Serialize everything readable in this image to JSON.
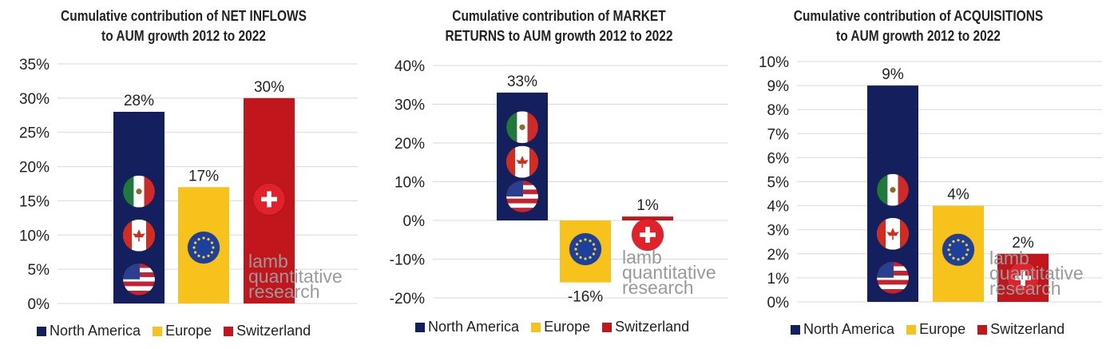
{
  "colors": {
    "north_america": "#14205e",
    "europe": "#f7c21b",
    "switzerland": "#c0161c",
    "grid": "#d9d9d9",
    "text": "#222222"
  },
  "legend": [
    "North America",
    "Europe",
    "Switzerland"
  ],
  "watermark": {
    "line1": "lamb",
    "line2": "quantitative",
    "line3": "research"
  },
  "icons": {
    "north_america": [
      "mexico-flag-icon",
      "canada-flag-icon",
      "usa-flag-icon"
    ],
    "europe": [
      "eu-flag-icon"
    ],
    "switzerland": [
      "swiss-flag-icon"
    ]
  },
  "chart_data": [
    {
      "type": "bar",
      "title": [
        "Cumulative contribution of NET INFLOWS",
        "to AUM growth 2012 to 2022"
      ],
      "categories": [
        "North America",
        "Europe",
        "Switzerland"
      ],
      "values": [
        28,
        17,
        30
      ],
      "data_labels": [
        "28%",
        "17%",
        "30%"
      ],
      "yticks": [
        "0%",
        "5%",
        "10%",
        "15%",
        "20%",
        "25%",
        "30%",
        "35%"
      ],
      "ylim": [
        0,
        35
      ],
      "tick_step": 5,
      "grid": true,
      "legend_position": "bottom"
    },
    {
      "type": "bar",
      "title": [
        "Cumulative contribution of MARKET",
        "RETURNS to AUM growth 2012 to 2022"
      ],
      "categories": [
        "North America",
        "Europe",
        "Switzerland"
      ],
      "values": [
        33,
        -16,
        1
      ],
      "data_labels": [
        "33%",
        "-16%",
        "1%"
      ],
      "yticks": [
        "-20%",
        "-10%",
        "0%",
        "10%",
        "20%",
        "30%",
        "40%"
      ],
      "ylim": [
        -20,
        40
      ],
      "tick_step": 10,
      "grid": true,
      "legend_position": "bottom"
    },
    {
      "type": "bar",
      "title": [
        "Cumulative contribution of ACQUISITIONS",
        "to AUM growth 2012 to 2022"
      ],
      "categories": [
        "North America",
        "Europe",
        "Switzerland"
      ],
      "values": [
        9,
        4,
        2
      ],
      "data_labels": [
        "9%",
        "4%",
        "2%"
      ],
      "yticks": [
        "0%",
        "1%",
        "2%",
        "3%",
        "4%",
        "5%",
        "6%",
        "7%",
        "8%",
        "9%",
        "10%"
      ],
      "ylim": [
        0,
        10
      ],
      "tick_step": 1,
      "grid": true,
      "legend_position": "bottom"
    }
  ]
}
